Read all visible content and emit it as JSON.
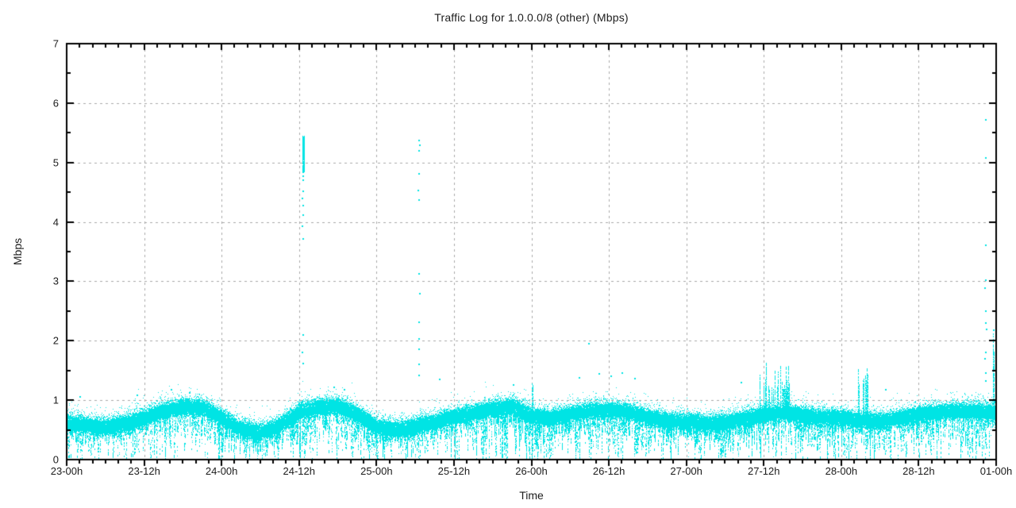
{
  "chart_data": {
    "type": "scatter",
    "title": "Traffic Log for 1.0.0.0/8 (other) (Mbps)",
    "xlabel": "Time",
    "ylabel": "Mbps",
    "ylim": [
      0,
      7
    ],
    "x_hours_range": [
      0,
      144
    ],
    "grid": true,
    "legend": "none",
    "point_color": "#00e4e4",
    "grid_color": "#a8a8a8",
    "axis_color": "#000000",
    "text_color": "#1c1c1c",
    "x_ticks": [
      {
        "t": 0,
        "label": "23-00h"
      },
      {
        "t": 12,
        "label": "23-12h"
      },
      {
        "t": 24,
        "label": "24-00h"
      },
      {
        "t": 36,
        "label": "24-12h"
      },
      {
        "t": 48,
        "label": "25-00h"
      },
      {
        "t": 60,
        "label": "25-12h"
      },
      {
        "t": 72,
        "label": "26-00h"
      },
      {
        "t": 84,
        "label": "26-12h"
      },
      {
        "t": 96,
        "label": "27-00h"
      },
      {
        "t": 108,
        "label": "27-12h"
      },
      {
        "t": 120,
        "label": "28-00h"
      },
      {
        "t": 132,
        "label": "28-12h"
      },
      {
        "t": 144,
        "label": "01-00h"
      }
    ],
    "y_ticks": [
      {
        "v": 0,
        "label": "0"
      },
      {
        "v": 1,
        "label": "1"
      },
      {
        "v": 2,
        "label": "2"
      },
      {
        "v": 3,
        "label": "3"
      },
      {
        "v": 4,
        "label": "4"
      },
      {
        "v": 5,
        "label": "5"
      },
      {
        "v": 6,
        "label": "6"
      },
      {
        "v": 7,
        "label": "7"
      }
    ],
    "x_minor_step_hours": 2,
    "y_minor_step": 0.5,
    "band_series": {
      "interval_hours": 3,
      "centers": [
        0.62,
        0.57,
        0.55,
        0.61,
        0.7,
        0.82,
        0.88,
        0.87,
        0.7,
        0.51,
        0.45,
        0.57,
        0.8,
        0.88,
        0.9,
        0.76,
        0.55,
        0.5,
        0.56,
        0.63,
        0.72,
        0.78,
        0.85,
        0.9,
        0.73,
        0.7,
        0.76,
        0.82,
        0.83,
        0.8,
        0.71,
        0.65,
        0.64,
        0.6,
        0.62,
        0.69,
        0.76,
        0.78,
        0.75,
        0.71,
        0.7,
        0.66,
        0.64,
        0.69,
        0.76,
        0.8,
        0.82,
        0.82,
        0.78
      ]
    },
    "texture": {
      "core_halfwidth": 0.055,
      "core_dots_per_col": 42,
      "top_fuzz_dots": 9,
      "top_fuzz_scale": 0.05,
      "rain_prob": 0.8,
      "full_streak_prob": 0.02
    },
    "rain_regions": [
      {
        "t0": 22,
        "t1": 50,
        "boost": 1.35
      },
      {
        "t0": 64,
        "t1": 74,
        "boost": 2.0
      },
      {
        "t0": 74,
        "t1": 96,
        "boost": 1.3
      },
      {
        "t0": 96,
        "t1": 121,
        "boost": 1.6
      },
      {
        "t0": 130,
        "t1": 144,
        "boost": 1.5
      }
    ],
    "spike_events": [
      {
        "kind": "burst",
        "t": 36.6,
        "y_min": 4.85,
        "y_max": 5.46
      },
      {
        "kind": "column",
        "t": 72.15,
        "y_min": 0.15,
        "y_max": 1.28
      },
      {
        "kind": "cluster",
        "t_start": 107.3,
        "t_end": 112.6,
        "top_min": 1.15,
        "top_max": 1.85
      },
      {
        "kind": "cluster",
        "t_start": 122.4,
        "t_end": 124.3,
        "top_min": 1.25,
        "top_max": 1.55
      },
      {
        "kind": "cluster",
        "t_start": 143.2,
        "t_end": 144.0,
        "top_min": 1.1,
        "top_max": 2.3
      }
    ],
    "outlier_dots": [
      [
        36.6,
        4.77
      ],
      [
        36.7,
        4.7
      ],
      [
        36.6,
        4.52
      ],
      [
        36.55,
        4.4
      ],
      [
        36.7,
        4.28
      ],
      [
        36.6,
        4.12
      ],
      [
        36.5,
        3.93
      ],
      [
        36.65,
        3.72
      ],
      [
        36.6,
        2.1
      ],
      [
        36.5,
        1.8
      ],
      [
        36.7,
        1.62
      ],
      [
        54.6,
        5.37
      ],
      [
        54.7,
        5.29
      ],
      [
        54.6,
        5.2
      ],
      [
        54.6,
        4.81
      ],
      [
        54.5,
        4.53
      ],
      [
        54.6,
        4.37
      ],
      [
        54.6,
        3.13
      ],
      [
        54.7,
        2.79
      ],
      [
        54.6,
        2.31
      ],
      [
        54.55,
        2.03
      ],
      [
        54.65,
        1.86
      ],
      [
        54.6,
        1.6
      ],
      [
        54.6,
        1.42
      ],
      [
        142.4,
        5.72
      ],
      [
        142.4,
        5.08
      ],
      [
        142.4,
        3.61
      ],
      [
        142.45,
        3.02
      ],
      [
        142.3,
        2.89
      ],
      [
        142.4,
        2.5
      ],
      [
        142.4,
        2.3
      ],
      [
        142.5,
        2.19
      ],
      [
        142.4,
        1.81
      ],
      [
        142.3,
        1.7
      ],
      [
        143.6,
        2.18
      ],
      [
        142.4,
        1.45
      ],
      [
        142.4,
        1.32
      ],
      [
        80.9,
        1.95
      ],
      [
        69.2,
        1.25
      ],
      [
        57.8,
        1.35
      ],
      [
        82.5,
        1.44
      ],
      [
        84.3,
        1.4
      ],
      [
        86.1,
        1.45
      ],
      [
        88.0,
        1.36
      ],
      [
        79.5,
        1.38
      ],
      [
        16.2,
        1.18
      ],
      [
        19.0,
        1.12
      ],
      [
        41.5,
        1.22
      ],
      [
        43.0,
        1.18
      ],
      [
        11.0,
        1.08
      ],
      [
        104.5,
        1.3
      ],
      [
        126.9,
        1.18
      ],
      [
        2.1,
        1.05
      ]
    ]
  }
}
